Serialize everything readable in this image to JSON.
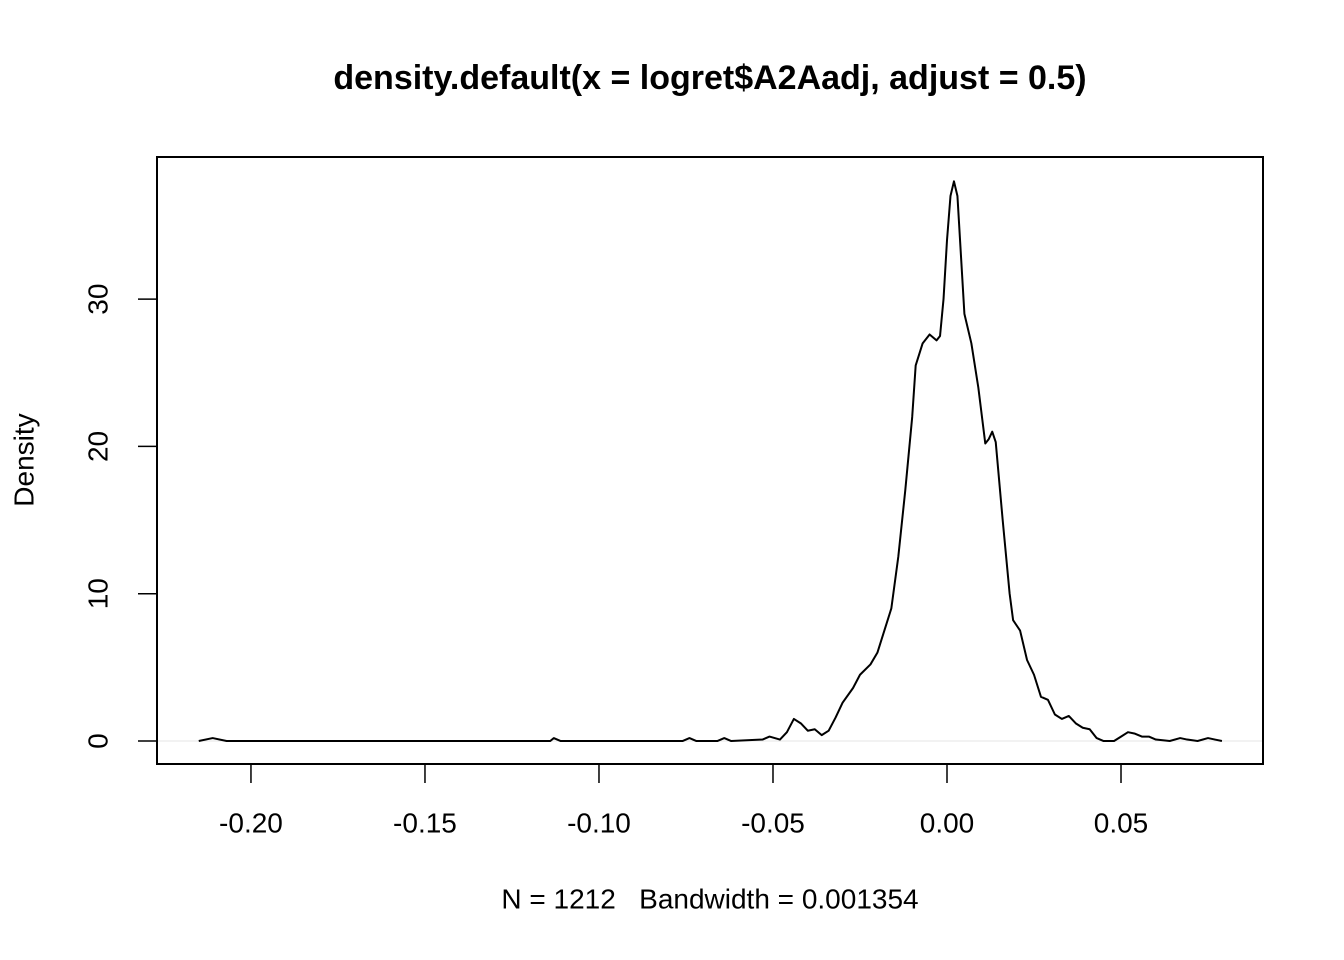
{
  "chart_data": {
    "type": "line",
    "title": "density.default(x = logret$A2Aadj, adjust = 0.5)",
    "x_label": "N = 1212   Bandwidth = 0.001354",
    "y_label": "Density",
    "xlim": [
      -0.227,
      0.0908
    ],
    "ylim": [
      -1.56,
      39.65
    ],
    "xticks": [
      {
        "value": -0.2,
        "label": "-0.20"
      },
      {
        "value": -0.15,
        "label": "-0.15"
      },
      {
        "value": -0.1,
        "label": "-0.10"
      },
      {
        "value": -0.05,
        "label": "-0.05"
      },
      {
        "value": 0,
        "label": "0.00"
      },
      {
        "value": 0.05,
        "label": "0.05"
      }
    ],
    "yticks": [
      0,
      10,
      20,
      30
    ],
    "series": [
      {
        "color": "#000000",
        "x": [
          -0.215,
          -0.211,
          -0.207,
          -0.114,
          -0.113,
          -0.111,
          -0.076,
          -0.074,
          -0.072,
          -0.066,
          -0.064,
          -0.062,
          -0.053,
          -0.051,
          -0.048,
          -0.046,
          -0.044,
          -0.042,
          -0.04,
          -0.038,
          -0.036,
          -0.034,
          -0.032,
          -0.03,
          -0.027,
          -0.025,
          -0.022,
          -0.02,
          -0.018,
          -0.016,
          -0.014,
          -0.012,
          -0.01,
          -0.009,
          -0.007,
          -0.005,
          -0.003,
          -0.002,
          -0.001,
          0.0,
          0.001,
          0.002,
          0.003,
          0.004,
          0.005,
          0.007,
          0.009,
          0.011,
          0.012,
          0.013,
          0.014,
          0.016,
          0.018,
          0.019,
          0.021,
          0.023,
          0.025,
          0.027,
          0.029,
          0.031,
          0.033,
          0.035,
          0.037,
          0.039,
          0.041,
          0.043,
          0.045,
          0.048,
          0.05,
          0.052,
          0.054,
          0.056,
          0.058,
          0.06,
          0.064,
          0.067,
          0.069,
          0.072,
          0.075,
          0.077,
          0.079
        ],
        "values": [
          0,
          0.2,
          0,
          0,
          0.2,
          0,
          0,
          0.2,
          0,
          0,
          0.2,
          0,
          0.1,
          0.3,
          0.1,
          0.6,
          1.5,
          1.2,
          0.7,
          0.8,
          0.4,
          0.7,
          1.6,
          2.6,
          3.6,
          4.5,
          5.2,
          6.0,
          7.5,
          9.0,
          12.5,
          17,
          22,
          25.5,
          27,
          27.6,
          27.2,
          27.5,
          30,
          34,
          37,
          38,
          37,
          33,
          29,
          27,
          24,
          20.2,
          20.5,
          21,
          20.3,
          15,
          10,
          8.2,
          7.5,
          5.5,
          4.5,
          3.0,
          2.8,
          1.8,
          1.5,
          1.7,
          1.2,
          0.9,
          0.8,
          0.2,
          0,
          0,
          0.3,
          0.6,
          0.5,
          0.3,
          0.3,
          0.1,
          0,
          0.2,
          0.1,
          0,
          0.2,
          0.1,
          0
        ]
      }
    ]
  }
}
